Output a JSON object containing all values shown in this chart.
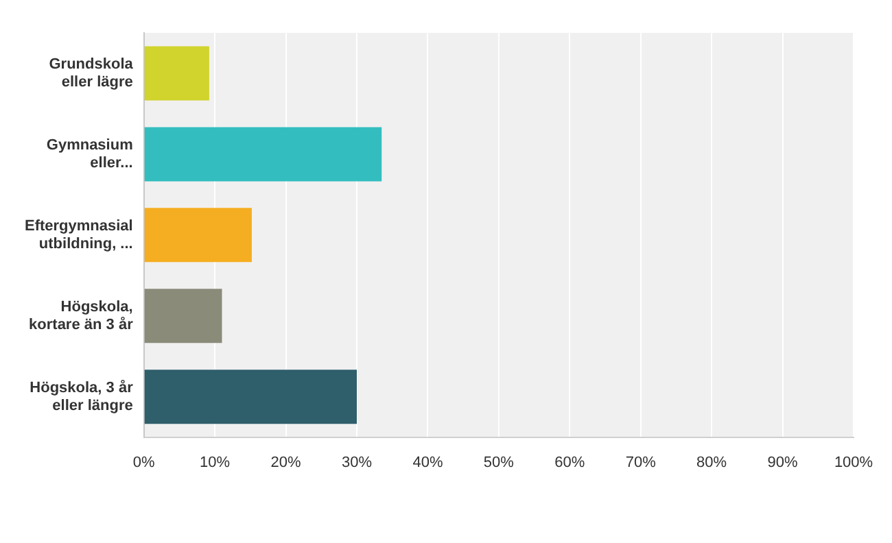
{
  "chart_data": {
    "type": "bar",
    "orientation": "horizontal",
    "categories": [
      "Grundskola\neller lägre",
      "Gymnasium\neller...",
      "Eftergymnasial\nutbildning, ...",
      "Högskola,\nkortare än 3 år",
      "Högskola, 3 år\neller längre"
    ],
    "values": [
      9.2,
      33.5,
      15.2,
      11.0,
      30.0
    ],
    "colors": [
      "#d0d42c",
      "#33bdbf",
      "#f5ae21",
      "#8b8b7a",
      "#2e5f6b"
    ],
    "xlim": [
      0,
      100
    ],
    "xticks": [
      {
        "value": 0,
        "label": "0%"
      },
      {
        "value": 10,
        "label": "10%"
      },
      {
        "value": 20,
        "label": "20%"
      },
      {
        "value": 30,
        "label": "30%"
      },
      {
        "value": 40,
        "label": "40%"
      },
      {
        "value": 50,
        "label": "50%"
      },
      {
        "value": 60,
        "label": "60%"
      },
      {
        "value": 70,
        "label": "70%"
      },
      {
        "value": 80,
        "label": "80%"
      },
      {
        "value": 90,
        "label": "90%"
      },
      {
        "value": 100,
        "label": "100%"
      }
    ],
    "grid": "x",
    "legend": false
  }
}
